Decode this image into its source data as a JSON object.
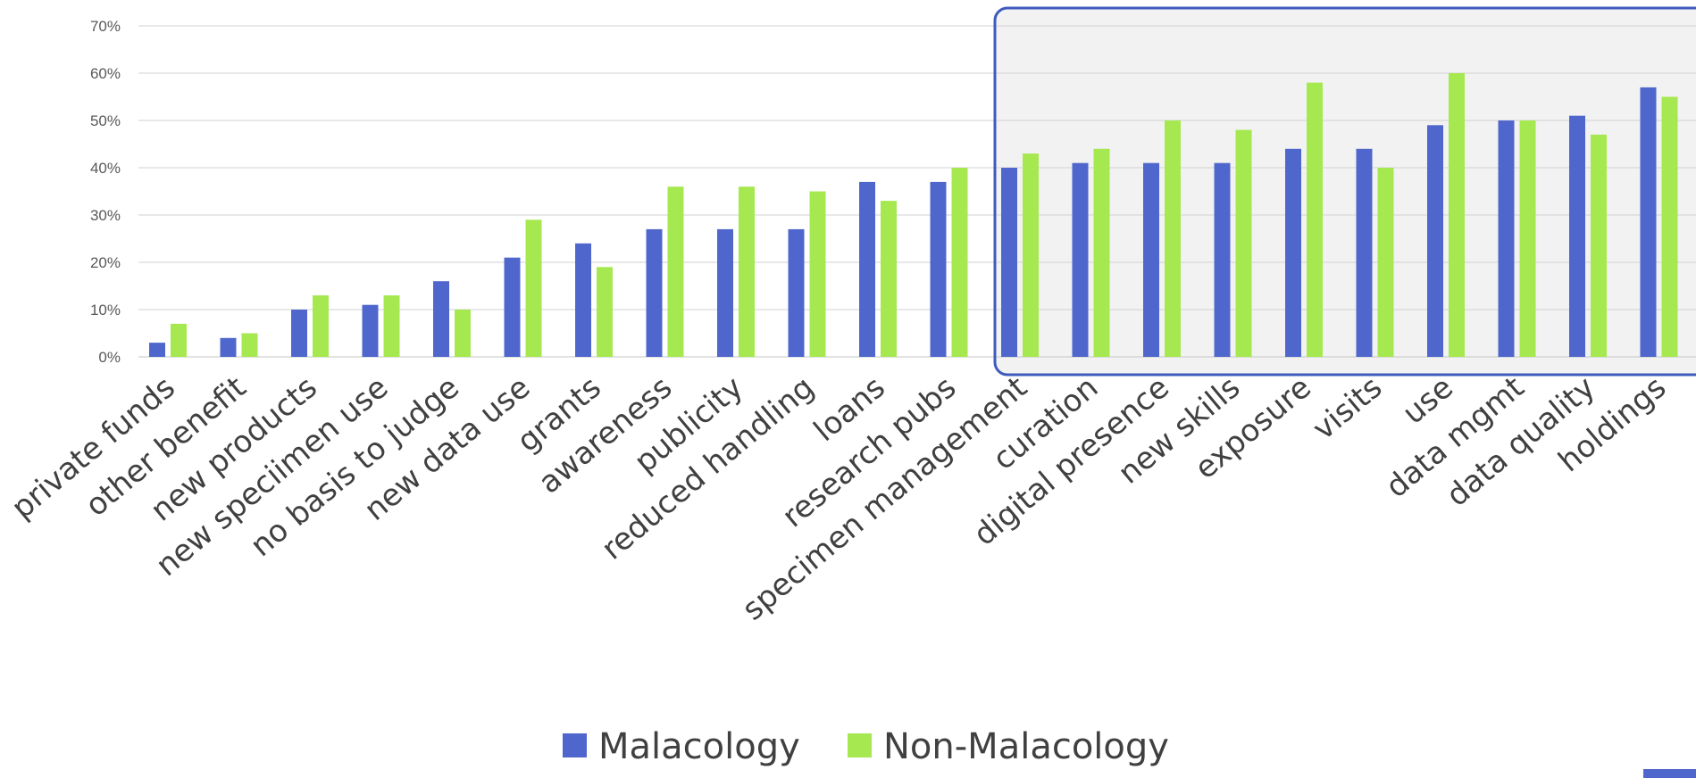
{
  "chart_data": {
    "type": "bar",
    "categories": [
      "private funds",
      "other benefit",
      "new products",
      "new speciimen use",
      "no basis to judge",
      "new data use",
      "grants",
      "awareness",
      "publicity",
      "reduced handling",
      "loans",
      "research pubs",
      "specimen management",
      "curation",
      "digital presence",
      "new skills",
      "exposure",
      "visits",
      "use",
      "data mgmt",
      "data quality",
      "holdings"
    ],
    "series": [
      {
        "name": "Malacology",
        "color": "#4f67cc",
        "values": [
          3,
          4,
          10,
          11,
          16,
          21,
          24,
          27,
          27,
          27,
          37,
          37,
          40,
          41,
          41,
          41,
          44,
          44,
          49,
          50,
          51,
          57
        ]
      },
      {
        "name": "Non-Malacology",
        "color": "#a6e84f",
        "values": [
          7,
          5,
          13,
          13,
          10,
          29,
          19,
          36,
          36,
          35,
          33,
          40,
          43,
          44,
          50,
          48,
          58,
          40,
          60,
          50,
          47,
          55
        ]
      }
    ],
    "ylim": [
      0,
      70
    ],
    "yticks": [
      "0%",
      "10%",
      "20%",
      "30%",
      "40%",
      "50%",
      "60%",
      "70%"
    ],
    "grid": true,
    "legend_position": "bottom",
    "highlight": {
      "from_category": "specimen management",
      "to_category": "holdings",
      "box_color": "#3f5bbd",
      "fill": "#f2f2f2"
    }
  }
}
